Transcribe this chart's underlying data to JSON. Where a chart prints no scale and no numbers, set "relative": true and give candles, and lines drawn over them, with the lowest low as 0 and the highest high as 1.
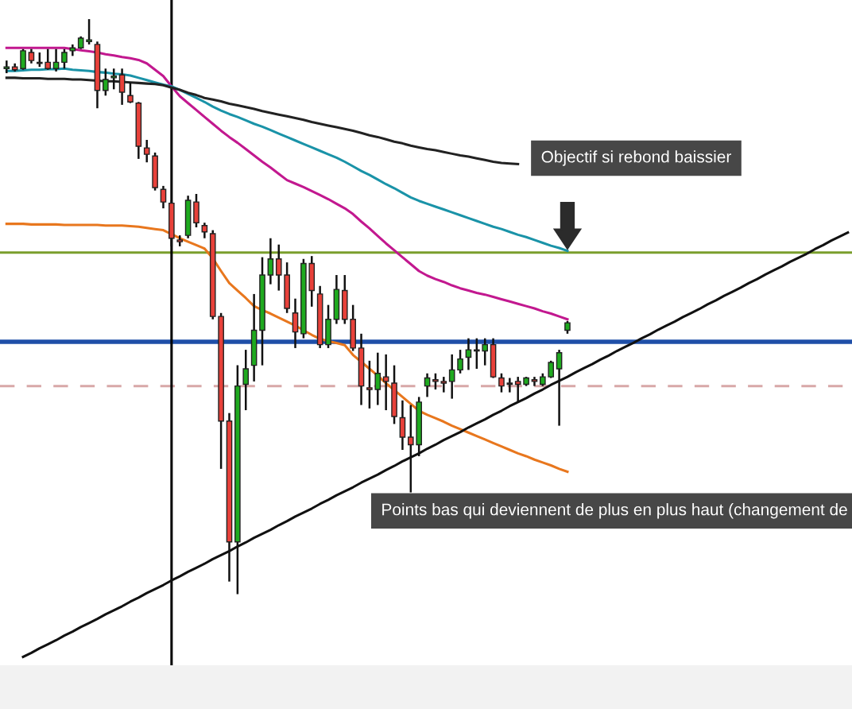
{
  "chart_data": {
    "type": "candlestick",
    "relative": true,
    "tick_labels": false,
    "categories": [
      null,
      null,
      null,
      null,
      null,
      null,
      null,
      null,
      null,
      null,
      null,
      null,
      null,
      null,
      null,
      null,
      null,
      null,
      null,
      null,
      null,
      null,
      null,
      null,
      null,
      null,
      null,
      null,
      null,
      null,
      null,
      null,
      null,
      null,
      null,
      null,
      null,
      null,
      null,
      null,
      null,
      null,
      null,
      null,
      null,
      null,
      null,
      null,
      null,
      null,
      null,
      null,
      null,
      null,
      null,
      null,
      null,
      null,
      null,
      null,
      null,
      null,
      null,
      null,
      null,
      null,
      null,
      null,
      null,
      null,
      null,
      null,
      null,
      null,
      null,
      null,
      null,
      null,
      null,
      null,
      null,
      null,
      null,
      null,
      null,
      null,
      null,
      null,
      null,
      null,
      null,
      null,
      null,
      null,
      null,
      null,
      null,
      null,
      null,
      null,
      null,
      null,
      null
    ],
    "ohlc": [
      [
        0.914,
        0.928,
        0.906,
        0.917
      ],
      [
        0.917,
        0.923,
        0.909,
        0.912
      ],
      [
        0.914,
        0.948,
        0.912,
        0.945
      ],
      [
        0.942,
        0.948,
        0.923,
        0.928
      ],
      [
        0.925,
        0.942,
        0.917,
        0.923
      ],
      [
        0.925,
        0.948,
        0.912,
        0.914
      ],
      [
        0.914,
        0.948,
        0.909,
        0.925
      ],
      [
        0.925,
        0.948,
        0.914,
        0.942
      ],
      [
        0.945,
        0.956,
        0.936,
        0.95
      ],
      [
        0.95,
        0.97,
        0.948,
        0.967
      ],
      [
        0.961,
        1.0,
        0.956,
        0.964
      ],
      [
        0.956,
        0.961,
        0.845,
        0.876
      ],
      [
        0.876,
        0.914,
        0.867,
        0.895
      ],
      [
        0.898,
        0.914,
        0.878,
        0.901
      ],
      [
        0.903,
        0.914,
        0.851,
        0.873
      ],
      [
        0.867,
        0.89,
        0.854,
        0.856
      ],
      [
        0.854,
        0.856,
        0.757,
        0.779
      ],
      [
        0.776,
        0.79,
        0.751,
        0.765
      ],
      [
        0.762,
        0.768,
        0.702,
        0.707
      ],
      [
        0.704,
        0.71,
        0.671,
        0.682
      ],
      [
        0.68,
        0.685,
        0.605,
        0.619
      ],
      [
        0.616,
        0.624,
        0.605,
        0.613
      ],
      [
        0.624,
        0.693,
        0.619,
        0.685
      ],
      [
        0.682,
        0.696,
        0.638,
        0.646
      ],
      [
        0.641,
        0.646,
        0.619,
        0.63
      ],
      [
        0.627,
        0.633,
        0.478,
        0.483
      ],
      [
        0.483,
        0.489,
        0.218,
        0.301
      ],
      [
        0.301,
        0.315,
        0.022,
        0.091
      ],
      [
        0.091,
        0.398,
        0,
        0.362
      ],
      [
        0.365,
        0.425,
        0.32,
        0.392
      ],
      [
        0.398,
        0.522,
        0.37,
        0.459
      ],
      [
        0.459,
        0.586,
        0.398,
        0.555
      ],
      [
        0.555,
        0.619,
        0.539,
        0.583
      ],
      [
        0.583,
        0.608,
        0.528,
        0.555
      ],
      [
        0.555,
        0.577,
        0.489,
        0.497
      ],
      [
        0.489,
        0.514,
        0.428,
        0.456
      ],
      [
        0.453,
        0.583,
        0.445,
        0.575
      ],
      [
        0.575,
        0.588,
        0.5,
        0.528
      ],
      [
        0.522,
        0.536,
        0.428,
        0.434
      ],
      [
        0.434,
        0.503,
        0.428,
        0.478
      ],
      [
        0.478,
        0.555,
        0.47,
        0.53
      ],
      [
        0.528,
        0.555,
        0.47,
        0.478
      ],
      [
        0.478,
        0.503,
        0.423,
        0.428
      ],
      [
        0.428,
        0.453,
        0.329,
        0.362
      ],
      [
        0.359,
        0.406,
        0.323,
        0.356
      ],
      [
        0.356,
        0.42,
        0.329,
        0.384
      ],
      [
        0.378,
        0.417,
        0.32,
        0.37
      ],
      [
        0.367,
        0.398,
        0.296,
        0.309
      ],
      [
        0.307,
        0.337,
        0.251,
        0.273
      ],
      [
        0.273,
        0.329,
        0.177,
        0.26
      ],
      [
        0.26,
        0.343,
        0.24,
        0.334
      ],
      [
        0.362,
        0.384,
        0.343,
        0.376
      ],
      [
        0.373,
        0.384,
        0.356,
        0.37
      ],
      [
        0.37,
        0.378,
        0.351,
        0.367
      ],
      [
        0.37,
        0.417,
        0.34,
        0.39
      ],
      [
        0.39,
        0.425,
        0.384,
        0.409
      ],
      [
        0.412,
        0.445,
        0.39,
        0.425
      ],
      [
        0.425,
        0.445,
        0.392,
        0.423
      ],
      [
        0.423,
        0.445,
        0.398,
        0.434
      ],
      [
        0.434,
        0.445,
        0.376,
        0.378
      ],
      [
        0.376,
        0.384,
        0.351,
        0.362
      ],
      [
        0.365,
        0.376,
        0.351,
        0.367
      ],
      [
        0.37,
        0.378,
        0.334,
        0.365
      ],
      [
        0.365,
        0.378,
        0.362,
        0.376
      ],
      [
        0.373,
        0.378,
        0.362,
        0.37
      ],
      [
        0.365,
        0.384,
        0.362,
        0.378
      ],
      [
        0.378,
        0.406,
        0.376,
        0.403
      ],
      [
        0.392,
        0.425,
        0.293,
        0.42
      ],
      [
        0.459,
        0.475,
        0.453,
        0.472
      ],
      null,
      null,
      null,
      null,
      null,
      null,
      null,
      null,
      null,
      null,
      null,
      null,
      null,
      null,
      null,
      null,
      null,
      null,
      null,
      null,
      null,
      null,
      null,
      null,
      null,
      null,
      null,
      null,
      null,
      null,
      null,
      null,
      null,
      null
    ],
    "series": [
      {
        "type": "line",
        "color": "#c2188f",
        "values": [
          0.95,
          0.95,
          0.95,
          0.95,
          0.95,
          0.95,
          0.95,
          0.95,
          0.948,
          0.946,
          0.944,
          0.942,
          0.939,
          0.937,
          0.934,
          0.932,
          0.929,
          0.923,
          0.912,
          0.901,
          0.883,
          0.866,
          0.854,
          0.842,
          0.83,
          0.818,
          0.806,
          0.795,
          0.785,
          0.774,
          0.763,
          0.752,
          0.742,
          0.731,
          0.72,
          0.714,
          0.708,
          0.701,
          0.694,
          0.687,
          0.679,
          0.671,
          0.661,
          0.648,
          0.636,
          0.623,
          0.61,
          0.598,
          0.586,
          0.574,
          0.562,
          0.554,
          0.548,
          0.543,
          0.537,
          0.532,
          0.528,
          0.524,
          0.521,
          0.517,
          0.513,
          0.509,
          0.505,
          0.501,
          0.497,
          0.492,
          0.488,
          0.483,
          0.478,
          null,
          null,
          null,
          null,
          null,
          null,
          null,
          null,
          null,
          null,
          null,
          null,
          null,
          null,
          null,
          null,
          null,
          null,
          null,
          null,
          null,
          null,
          null,
          null,
          null,
          null,
          null,
          null,
          null,
          null,
          null,
          null,
          null,
          null
        ]
      },
      {
        "type": "line",
        "color": "#1a93a8",
        "values": [
          0.91,
          0.91,
          0.911,
          0.912,
          0.912,
          0.913,
          0.913,
          0.914,
          0.912,
          0.911,
          0.91,
          0.908,
          0.907,
          0.905,
          0.904,
          0.902,
          0.898,
          0.894,
          0.89,
          0.886,
          0.883,
          0.877,
          0.87,
          0.863,
          0.856,
          0.848,
          0.841,
          0.835,
          0.83,
          0.824,
          0.818,
          0.813,
          0.807,
          0.801,
          0.795,
          0.789,
          0.783,
          0.777,
          0.771,
          0.765,
          0.759,
          0.752,
          0.744,
          0.736,
          0.729,
          0.721,
          0.713,
          0.706,
          0.698,
          0.69,
          0.684,
          0.679,
          0.674,
          0.669,
          0.664,
          0.659,
          0.654,
          0.649,
          0.644,
          0.639,
          0.635,
          0.63,
          0.625,
          0.621,
          0.616,
          0.611,
          0.606,
          0.602,
          0.597,
          null,
          null,
          null,
          null,
          null,
          null,
          null,
          null,
          null,
          null,
          null,
          null,
          null,
          null,
          null,
          null,
          null,
          null,
          null,
          null,
          null,
          null,
          null,
          null,
          null,
          null,
          null,
          null,
          null,
          null,
          null,
          null,
          null,
          null
        ]
      },
      {
        "type": "line",
        "color": "#222222",
        "values": [
          0.898,
          0.898,
          0.897,
          0.897,
          0.897,
          0.896,
          0.896,
          0.896,
          0.895,
          0.895,
          0.894,
          0.893,
          0.892,
          0.892,
          0.891,
          0.89,
          0.889,
          0.888,
          0.887,
          0.885,
          0.881,
          0.877,
          0.872,
          0.868,
          0.863,
          0.86,
          0.857,
          0.853,
          0.85,
          0.847,
          0.844,
          0.84,
          0.837,
          0.834,
          0.831,
          0.828,
          0.825,
          0.821,
          0.818,
          0.815,
          0.812,
          0.809,
          0.806,
          0.802,
          0.798,
          0.795,
          0.791,
          0.787,
          0.784,
          0.78,
          0.777,
          0.774,
          0.772,
          0.769,
          0.766,
          0.763,
          0.761,
          0.758,
          0.755,
          0.752,
          0.75,
          0.749,
          0.748,
          null,
          null,
          null,
          null,
          null,
          null,
          null,
          null,
          null,
          null,
          null,
          null,
          null,
          null,
          null,
          null,
          null,
          null,
          null,
          null,
          null,
          null,
          null,
          null,
          null,
          null,
          null,
          null,
          null,
          null,
          null,
          null,
          null,
          null,
          null,
          null,
          null,
          null,
          null,
          null
        ]
      },
      {
        "type": "line",
        "color": "#e8771e",
        "values": [
          0.644,
          0.644,
          0.644,
          0.643,
          0.643,
          0.643,
          0.643,
          0.642,
          0.642,
          0.642,
          0.642,
          0.642,
          0.641,
          0.641,
          0.641,
          0.64,
          0.639,
          0.637,
          0.635,
          0.633,
          0.626,
          0.619,
          0.613,
          0.607,
          0.601,
          0.584,
          0.562,
          0.541,
          0.528,
          0.515,
          0.501,
          0.494,
          0.488,
          0.481,
          0.474,
          0.467,
          0.459,
          0.451,
          0.444,
          0.44,
          0.437,
          0.433,
          0.416,
          0.404,
          0.392,
          0.38,
          0.367,
          0.355,
          0.343,
          0.331,
          0.319,
          0.312,
          0.306,
          0.3,
          0.293,
          0.287,
          0.281,
          0.275,
          0.269,
          0.263,
          0.257,
          0.251,
          0.245,
          0.24,
          0.234,
          0.229,
          0.224,
          0.218,
          0.213,
          null,
          null,
          null,
          null,
          null,
          null,
          null,
          null,
          null,
          null,
          null,
          null,
          null,
          null,
          null,
          null,
          null,
          null,
          null,
          null,
          null,
          null,
          null,
          null,
          null,
          null,
          null,
          null,
          null,
          null,
          null,
          null,
          null,
          null
        ]
      },
      {
        "type": "line",
        "color": "#111111",
        "values": [
          null,
          null,
          -0.109,
          -0.102,
          -0.094,
          -0.087,
          -0.08,
          -0.072,
          -0.065,
          -0.057,
          -0.05,
          -0.043,
          -0.035,
          -0.028,
          -0.021,
          -0.013,
          -0.006,
          0.002,
          0.009,
          0.016,
          0.024,
          0.031,
          0.039,
          0.046,
          0.053,
          0.061,
          0.068,
          0.075,
          0.083,
          0.09,
          0.098,
          0.105,
          0.112,
          0.12,
          0.127,
          0.135,
          0.142,
          0.149,
          0.157,
          0.164,
          0.172,
          0.179,
          0.186,
          0.194,
          0.201,
          0.208,
          0.216,
          0.223,
          0.231,
          0.238,
          0.245,
          0.253,
          0.26,
          0.268,
          0.275,
          0.282,
          0.29,
          0.297,
          0.304,
          0.312,
          0.319,
          0.327,
          0.334,
          0.341,
          0.349,
          0.356,
          0.364,
          0.371,
          0.378,
          0.386,
          0.393,
          0.4,
          0.408,
          0.415,
          0.423,
          0.43,
          0.437,
          0.445,
          0.452,
          0.46,
          0.467,
          0.474,
          0.482,
          0.489,
          0.496,
          0.504,
          0.511,
          0.519,
          0.526,
          0.533,
          0.541,
          0.548,
          0.556,
          0.563,
          0.57,
          0.578,
          0.585,
          0.592,
          0.6,
          0.607,
          0.615,
          0.622,
          0.629
        ]
      }
    ],
    "ref_lines": [
      {
        "axis": "y",
        "value": 0.594,
        "color": "#7a9e2c"
      },
      {
        "axis": "y",
        "value": 0.439,
        "color": "#1f4fa8"
      },
      {
        "axis": "y",
        "value": 0.362,
        "color": "#d8a8a8",
        "line_style": "dashed"
      }
    ],
    "annotations": [
      "Objectif si rebond baissier",
      "Points bas qui deviennent de plus en plus haut (changement de"
    ]
  }
}
